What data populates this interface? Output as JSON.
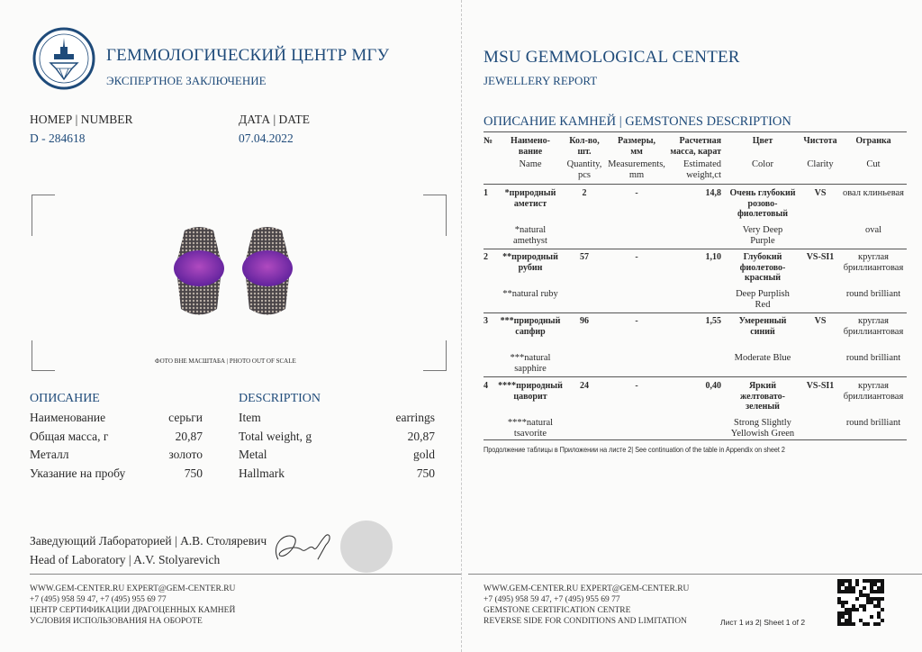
{
  "left": {
    "org_ru": "ГЕММОЛОГИЧЕСКИЙ ЦЕНТР МГУ",
    "doc_ru": "ЭКСПЕРТНОЕ ЗАКЛЮЧЕНИЕ",
    "number_label": "НОМЕР | NUMBER",
    "number_value": "D - 284618",
    "date_label": "ДАТА | DATE",
    "date_value": "07.04.2022",
    "photo_caption": "ФОТО ВНЕ МАСШТАБА | PHOTO OUT OF SCALE",
    "desc_ru_title": "ОПИСАНИЕ",
    "desc_en_title": "DESCRIPTION",
    "desc_ru": [
      {
        "label": "Наименование",
        "value": "серьги"
      },
      {
        "label": "Общая масса, г",
        "value": "20,87"
      },
      {
        "label": "Металл",
        "value": "золото"
      },
      {
        "label": "Указание на пробу",
        "value": "750"
      }
    ],
    "desc_en": [
      {
        "label": "Item",
        "value": "earrings"
      },
      {
        "label": "Total weight, g",
        "value": "20,87"
      },
      {
        "label": "Metal",
        "value": "gold"
      },
      {
        "label": "Hallmark",
        "value": "750"
      }
    ],
    "head_ru": "Заведующий Лабораторией  | А.В. Столяревич",
    "head_en": "Head of Laboratory  | A.V. Stolyarevich",
    "footer": [
      "WWW.GEM-CENTER.RU EXPERT@GEM-CENTER.RU",
      "+7 (495) 958 59 47, +7 (495) 955 69 77",
      "ЦЕНТР СЕРТИФИКАЦИИ ДРАГОЦЕННЫХ КАМНЕЙ",
      "УСЛОВИЯ ИСПОЛЬЗОВАНИЯ НА ОБОРОТЕ"
    ]
  },
  "right": {
    "org_en": "MSU GEMMOLOGICAL CENTER",
    "doc_en": "JEWELLERY REPORT",
    "table_title": "ОПИСАНИЕ КАМНЕЙ | GEMSTONES DESCRIPTION",
    "headers": {
      "num": [
        "№",
        ""
      ],
      "name": [
        "Наимено-\nвание",
        "Name"
      ],
      "qty": [
        "Кол-во,\nшт.",
        "Quantity,\npcs"
      ],
      "meas": [
        "Размеры,\nмм",
        "Measurements,\nmm"
      ],
      "weight": [
        "Расчетная\nмасса, карат",
        "Estimated\nweight,ct"
      ],
      "color": [
        "Цвет",
        "Color"
      ],
      "clarity": [
        "Чистота",
        "Clarity"
      ],
      "cut": [
        "Огранка",
        "Cut"
      ]
    },
    "rows": [
      {
        "num": "1",
        "name_ru": "*природный\nаметист",
        "name_en": "*natural\namethyst",
        "qty": "2",
        "meas": "-",
        "weight": "14,8",
        "color_ru": "Очень глубокий\nрозово-\nфиолетовый",
        "color_en": "Very Deep\nPurple",
        "clarity": "VS",
        "cut_ru": "овал клиньевая",
        "cut_en": "oval"
      },
      {
        "num": "2",
        "name_ru": "**природный\nрубин",
        "name_en": "**natural ruby",
        "qty": "57",
        "meas": "-",
        "weight": "1,10",
        "color_ru": "Глубокий\nфиолетово-\nкрасный",
        "color_en": "Deep Purplish\nRed",
        "clarity": "VS-SI1",
        "cut_ru": "круглая\nбриллиантовая",
        "cut_en": "round brilliant"
      },
      {
        "num": "3",
        "name_ru": "***природный\nсапфир",
        "name_en": "***natural\nsapphire",
        "qty": "96",
        "meas": "-",
        "weight": "1,55",
        "color_ru": "Умеренный\nсиний",
        "color_en": "Moderate Blue",
        "clarity": "VS",
        "cut_ru": "круглая\nбриллиантовая",
        "cut_en": "round brilliant"
      },
      {
        "num": "4",
        "name_ru": "****природный\nцаворит",
        "name_en": "****natural\ntsavorite",
        "qty": "24",
        "meas": "-",
        "weight": "0,40",
        "color_ru": "Яркий\nжелтовато-\nзеленый",
        "color_en": "Strong Slightly\nYellowish Green",
        "clarity": "VS-SI1",
        "cut_ru": "круглая\nбриллиантовая",
        "cut_en": "round brilliant"
      }
    ],
    "continuation_note": "Продолжение таблицы в Приложении на листе 2| See continuation of the table in Appendix on sheet 2",
    "footer": [
      "WWW.GEM-CENTER.RU EXPERT@GEM-CENTER.RU",
      "+7 (495) 958 59 47, +7 (495) 955 69 77",
      "GEMSTONE CERTIFICATION CENTRE",
      "REVERSE SIDE FOR CONDITIONS AND LIMITATION"
    ],
    "sheet": "Лист 1 из 2| Sheet 1 of 2"
  },
  "colors": {
    "brand_blue": "#1f4b7a",
    "stone": "#7a2fb0"
  }
}
